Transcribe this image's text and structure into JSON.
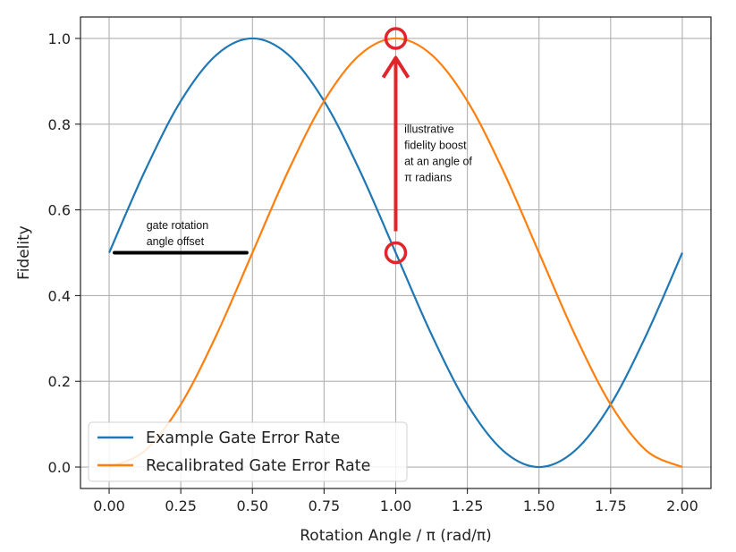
{
  "chart_data": {
    "type": "line",
    "title": "",
    "xlabel": "Rotation Angle / π (rad/π)",
    "ylabel": "Fidelity",
    "xlim": [
      -0.1,
      2.1
    ],
    "ylim": [
      -0.05,
      1.05
    ],
    "xticks": [
      0.0,
      0.25,
      0.5,
      0.75,
      1.0,
      1.25,
      1.5,
      1.75,
      2.0
    ],
    "xtick_labels": [
      "0.00",
      "0.25",
      "0.50",
      "0.75",
      "1.00",
      "1.25",
      "1.50",
      "1.75",
      "2.00"
    ],
    "yticks": [
      0.0,
      0.2,
      0.4,
      0.6,
      0.8,
      1.0
    ],
    "ytick_labels": [
      "0.0",
      "0.2",
      "0.4",
      "0.6",
      "0.8",
      "1.0"
    ],
    "grid": true,
    "legend_position": "lower-left",
    "series": [
      {
        "name": "Example Gate Error Rate",
        "color": "#1f77b4",
        "x": [
          0.0,
          0.125,
          0.25,
          0.375,
          0.5,
          0.625,
          0.75,
          0.875,
          1.0,
          1.125,
          1.25,
          1.375,
          1.5,
          1.625,
          1.75,
          1.875,
          2.0
        ],
        "y": [
          0.5,
          0.691,
          0.854,
          0.962,
          1.0,
          0.962,
          0.854,
          0.691,
          0.5,
          0.309,
          0.146,
          0.038,
          0.0,
          0.038,
          0.146,
          0.309,
          0.5
        ]
      },
      {
        "name": "Recalibrated Gate Error Rate",
        "color": "#ff7f0e",
        "x": [
          0.0,
          0.125,
          0.25,
          0.375,
          0.5,
          0.625,
          0.75,
          0.875,
          1.0,
          1.125,
          1.25,
          1.375,
          1.5,
          1.625,
          1.75,
          1.875,
          2.0
        ],
        "y": [
          0.0,
          0.038,
          0.146,
          0.309,
          0.5,
          0.691,
          0.854,
          0.962,
          1.0,
          0.962,
          0.854,
          0.691,
          0.5,
          0.309,
          0.146,
          0.038,
          0.0
        ]
      }
    ],
    "annotations": {
      "offset": {
        "text_lines": [
          "gate rotation",
          "angle offset"
        ],
        "color": "#000000",
        "from": [
          0.0,
          0.5
        ],
        "to": [
          0.48,
          0.5
        ],
        "label_at": [
          0.13,
          0.555
        ]
      },
      "boost": {
        "text_lines": [
          "illustrative",
          "fidelity boost",
          "at an angle of",
          "π radians"
        ],
        "color": "#e0252b",
        "from": [
          1.0,
          0.55
        ],
        "to": [
          1.0,
          0.955
        ],
        "markers": [
          [
            1.0,
            0.5
          ],
          [
            1.0,
            1.0
          ]
        ],
        "label_at": [
          1.03,
          0.78
        ]
      }
    }
  }
}
